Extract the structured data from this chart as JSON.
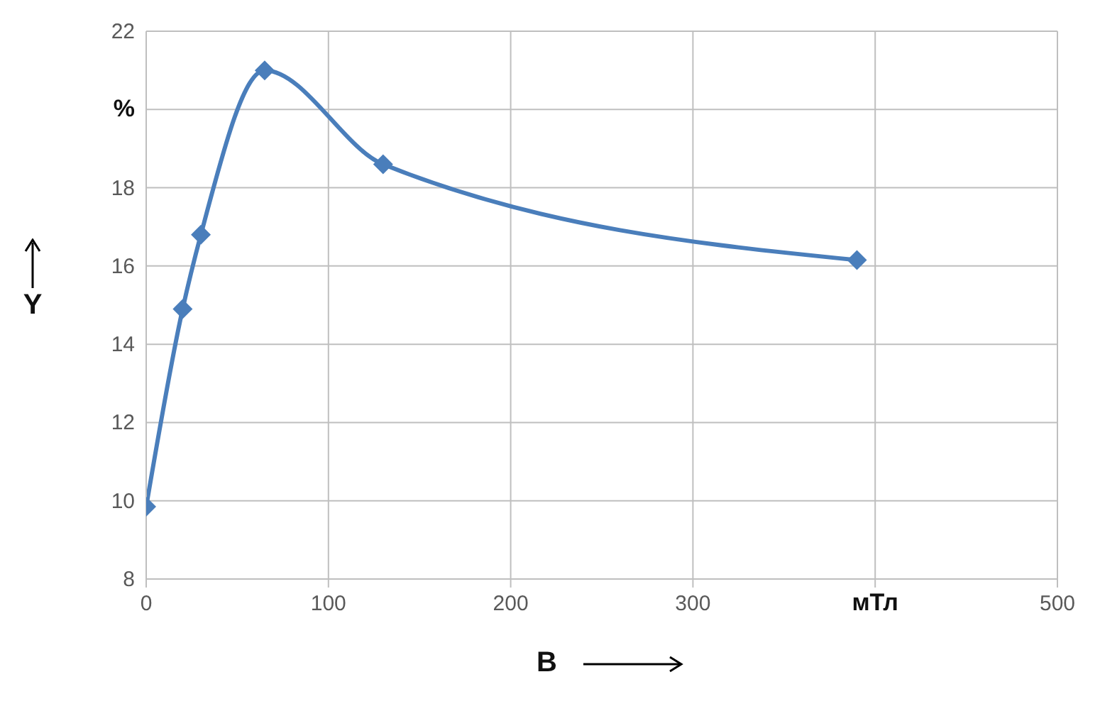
{
  "chart_data": {
    "type": "line",
    "xlabel": "B",
    "ylabel": "Y",
    "x": [
      0,
      20,
      30,
      65,
      130,
      390
    ],
    "series": [
      {
        "color": "#4a7ebb",
        "values": [
          9.85,
          14.9,
          16.8,
          21.0,
          18.6,
          16.15
        ]
      }
    ],
    "xlim": [
      0,
      500
    ],
    "xticks": [
      0,
      100,
      200,
      300,
      {
        "value": 400,
        "label": "мТл"
      },
      500
    ],
    "ylim": [
      8,
      22
    ],
    "yticks": [
      8,
      10,
      12,
      14,
      16,
      18,
      {
        "value": 20,
        "label": "%"
      },
      22
    ],
    "grid": true,
    "marker": "diamond",
    "line_style": "solid",
    "legend": false
  }
}
